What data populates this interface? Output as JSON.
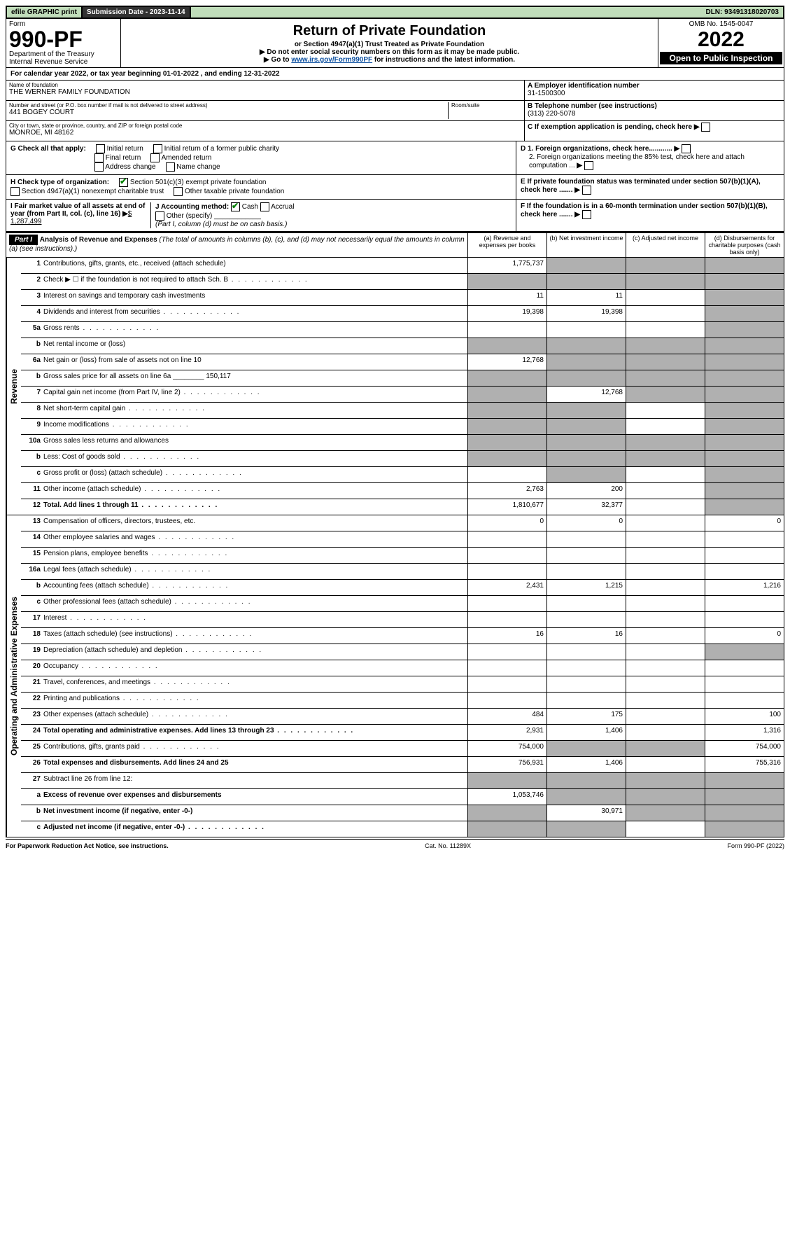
{
  "top": {
    "efile": "efile GRAPHIC print",
    "sub_date_label": "Submission Date - 2023-11-14",
    "dln": "DLN: 93491318020703"
  },
  "header": {
    "form_word": "Form",
    "form_no": "990-PF",
    "dept": "Department of the Treasury",
    "irs": "Internal Revenue Service",
    "title": "Return of Private Foundation",
    "subtitle": "or Section 4947(a)(1) Trust Treated as Private Foundation",
    "note1": "▶ Do not enter social security numbers on this form as it may be made public.",
    "note2_pre": "▶ Go to ",
    "note2_link": "www.irs.gov/Form990PF",
    "note2_post": " for instructions and the latest information.",
    "omb": "OMB No. 1545-0047",
    "year": "2022",
    "open": "Open to Public Inspection"
  },
  "cal_year": "For calendar year 2022, or tax year beginning 01-01-2022            , and ending 12-31-2022",
  "info": {
    "name_label": "Name of foundation",
    "name": "THE WERNER FAMILY FOUNDATION",
    "addr_label": "Number and street (or P.O. box number if mail is not delivered to street address)",
    "addr": "441 BOGEY COURT",
    "room_label": "Room/suite",
    "city_label": "City or town, state or province, country, and ZIP or foreign postal code",
    "city": "MONROE, MI  48162",
    "a_label": "A Employer identification number",
    "a_val": "31-1500300",
    "b_label": "B Telephone number (see instructions)",
    "b_val": "(313) 220-5078",
    "c_label": "C If exemption application is pending, check here",
    "d1": "D 1. Foreign organizations, check here............",
    "d2": "2. Foreign organizations meeting the 85% test, check here and attach computation ...",
    "e": "E  If private foundation status was terminated under section 507(b)(1)(A), check here .......",
    "f": "F  If the foundation is in a 60-month termination under section 507(b)(1)(B), check here .......",
    "g_label": "G Check all that apply:",
    "g_opts": [
      "Initial return",
      "Initial return of a former public charity",
      "Final return",
      "Amended return",
      "Address change",
      "Name change"
    ],
    "h_label": "H Check type of organization:",
    "h_opt1": "Section 501(c)(3) exempt private foundation",
    "h_opt2": "Section 4947(a)(1) nonexempt charitable trust",
    "h_opt3": "Other taxable private foundation",
    "i_label": "I Fair market value of all assets at end of year (from Part II, col. (c), line 16)",
    "i_val": "$  1,287,499",
    "j_label": "J Accounting method:",
    "j_cash": "Cash",
    "j_accrual": "Accrual",
    "j_other": "Other (specify)",
    "j_note": "(Part I, column (d) must be on cash basis.)"
  },
  "part1": {
    "label": "Part I",
    "title": "Analysis of Revenue and Expenses",
    "title_note": "(The total of amounts in columns (b), (c), and (d) may not necessarily equal the amounts in column (a) (see instructions).)",
    "cols": {
      "a": "(a)  Revenue and expenses per books",
      "b": "(b)  Net investment income",
      "c": "(c)  Adjusted net income",
      "d": "(d)  Disbursements for charitable purposes (cash basis only)"
    }
  },
  "sections": {
    "revenue": "Revenue",
    "expenses": "Operating and Administrative Expenses"
  },
  "rows": [
    {
      "n": "1",
      "t": "Contributions, gifts, grants, etc., received (attach schedule)",
      "a": "1,775,737",
      "gb": true,
      "gc": true,
      "gd": true
    },
    {
      "n": "2",
      "t": "Check ▶ ☐ if the foundation is not required to attach Sch. B",
      "dots": true,
      "ga": true,
      "gb": true,
      "gc": true,
      "gd": true
    },
    {
      "n": "3",
      "t": "Interest on savings and temporary cash investments",
      "a": "11",
      "b": "11",
      "gd": true
    },
    {
      "n": "4",
      "t": "Dividends and interest from securities",
      "dots": true,
      "a": "19,398",
      "b": "19,398",
      "gd": true
    },
    {
      "n": "5a",
      "t": "Gross rents",
      "dots": true,
      "gd": true
    },
    {
      "n": "b",
      "t": "Net rental income or (loss)",
      "ga": true,
      "gb": true,
      "gc": true,
      "gd": true
    },
    {
      "n": "6a",
      "t": "Net gain or (loss) from sale of assets not on line 10",
      "a": "12,768",
      "gb": true,
      "gc": true,
      "gd": true
    },
    {
      "n": "b",
      "t": "Gross sales price for all assets on line 6a ________ 150,117",
      "ga": true,
      "gb": true,
      "gc": true,
      "gd": true
    },
    {
      "n": "7",
      "t": "Capital gain net income (from Part IV, line 2)",
      "dots": true,
      "ga": true,
      "b": "12,768",
      "gc": true,
      "gd": true
    },
    {
      "n": "8",
      "t": "Net short-term capital gain",
      "dots": true,
      "ga": true,
      "gb": true,
      "gd": true
    },
    {
      "n": "9",
      "t": "Income modifications",
      "dots": true,
      "ga": true,
      "gb": true,
      "gd": true
    },
    {
      "n": "10a",
      "t": "Gross sales less returns and allowances",
      "ga": true,
      "gb": true,
      "gc": true,
      "gd": true
    },
    {
      "n": "b",
      "t": "Less: Cost of goods sold",
      "dots": true,
      "ga": true,
      "gb": true,
      "gc": true,
      "gd": true
    },
    {
      "n": "c",
      "t": "Gross profit or (loss) (attach schedule)",
      "dots": true,
      "gb": true,
      "gd": true
    },
    {
      "n": "11",
      "t": "Other income (attach schedule)",
      "dots": true,
      "a": "2,763",
      "b": "200",
      "gd": true
    },
    {
      "n": "12",
      "t": "Total. Add lines 1 through 11",
      "dots": true,
      "bold": true,
      "a": "1,810,677",
      "b": "32,377",
      "gd": true
    }
  ],
  "exp_rows": [
    {
      "n": "13",
      "t": "Compensation of officers, directors, trustees, etc.",
      "a": "0",
      "b": "0",
      "d": "0"
    },
    {
      "n": "14",
      "t": "Other employee salaries and wages",
      "dots": true
    },
    {
      "n": "15",
      "t": "Pension plans, employee benefits",
      "dots": true
    },
    {
      "n": "16a",
      "t": "Legal fees (attach schedule)",
      "dots": true
    },
    {
      "n": "b",
      "t": "Accounting fees (attach schedule)",
      "dots": true,
      "a": "2,431",
      "b": "1,215",
      "d": "1,216"
    },
    {
      "n": "c",
      "t": "Other professional fees (attach schedule)",
      "dots": true
    },
    {
      "n": "17",
      "t": "Interest",
      "dots": true
    },
    {
      "n": "18",
      "t": "Taxes (attach schedule) (see instructions)",
      "dots": true,
      "a": "16",
      "b": "16",
      "d": "0"
    },
    {
      "n": "19",
      "t": "Depreciation (attach schedule) and depletion",
      "dots": true,
      "gd": true
    },
    {
      "n": "20",
      "t": "Occupancy",
      "dots": true
    },
    {
      "n": "21",
      "t": "Travel, conferences, and meetings",
      "dots": true
    },
    {
      "n": "22",
      "t": "Printing and publications",
      "dots": true
    },
    {
      "n": "23",
      "t": "Other expenses (attach schedule)",
      "dots": true,
      "a": "484",
      "b": "175",
      "d": "100"
    },
    {
      "n": "24",
      "t": "Total operating and administrative expenses. Add lines 13 through 23",
      "dots": true,
      "bold": true,
      "a": "2,931",
      "b": "1,406",
      "d": "1,316"
    },
    {
      "n": "25",
      "t": "Contributions, gifts, grants paid",
      "dots": true,
      "a": "754,000",
      "gb": true,
      "gc": true,
      "d": "754,000"
    },
    {
      "n": "26",
      "t": "Total expenses and disbursements. Add lines 24 and 25",
      "bold": true,
      "a": "756,931",
      "b": "1,406",
      "d": "755,316"
    },
    {
      "n": "27",
      "t": "Subtract line 26 from line 12:",
      "ga": true,
      "gb": true,
      "gc": true,
      "gd": true
    },
    {
      "n": "a",
      "t": "Excess of revenue over expenses and disbursements",
      "bold": true,
      "a": "1,053,746",
      "gb": true,
      "gc": true,
      "gd": true
    },
    {
      "n": "b",
      "t": "Net investment income (if negative, enter -0-)",
      "bold": true,
      "ga": true,
      "b": "30,971",
      "gc": true,
      "gd": true
    },
    {
      "n": "c",
      "t": "Adjusted net income (if negative, enter -0-)",
      "dots": true,
      "bold": true,
      "ga": true,
      "gb": true,
      "gd": true
    }
  ],
  "footer": {
    "left": "For Paperwork Reduction Act Notice, see instructions.",
    "mid": "Cat. No. 11289X",
    "right": "Form 990-PF (2022)"
  }
}
